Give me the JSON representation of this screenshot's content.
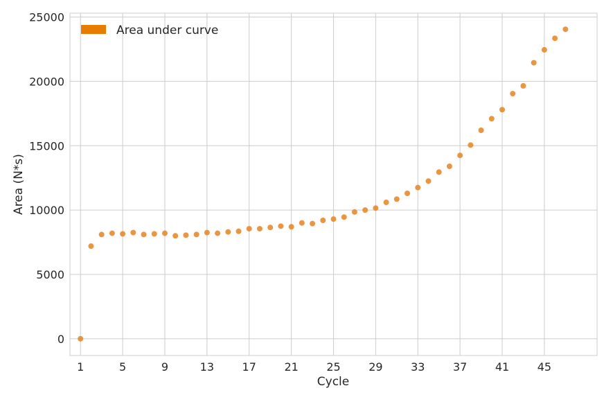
{
  "chart_data": {
    "type": "scatter",
    "xlabel": "Cycle",
    "ylabel": "Area (N*s)",
    "xlim": [
      0,
      50
    ],
    "ylim": [
      -1300,
      25300
    ],
    "x_ticks": [
      1,
      5,
      9,
      13,
      17,
      21,
      25,
      29,
      33,
      37,
      41,
      45
    ],
    "y_ticks": [
      0,
      5000,
      10000,
      15000,
      20000,
      25000
    ],
    "grid": true,
    "legend_position": "top-left",
    "series": [
      {
        "name": "Area under curve",
        "color": "#e8892c",
        "x": [
          1,
          2,
          3,
          4,
          5,
          6,
          7,
          8,
          9,
          10,
          11,
          12,
          13,
          14,
          15,
          16,
          17,
          18,
          19,
          20,
          21,
          22,
          23,
          24,
          25,
          26,
          27,
          28,
          29,
          30,
          31,
          32,
          33,
          34,
          35,
          36,
          37,
          38,
          39,
          40,
          41,
          42,
          43,
          44,
          45,
          46,
          47
        ],
        "y": [
          0,
          7200,
          8100,
          8200,
          8150,
          8250,
          8100,
          8150,
          8200,
          8000,
          8050,
          8100,
          8250,
          8200,
          8300,
          8350,
          8550,
          8550,
          8650,
          8750,
          8700,
          9000,
          8950,
          9200,
          9300,
          9450,
          9850,
          10000,
          10150,
          10600,
          10850,
          11300,
          11750,
          12250,
          12950,
          13400,
          14250,
          15050,
          16200,
          17100,
          17800,
          19050,
          19650,
          21450,
          22450,
          23350,
          24050
        ]
      }
    ]
  }
}
